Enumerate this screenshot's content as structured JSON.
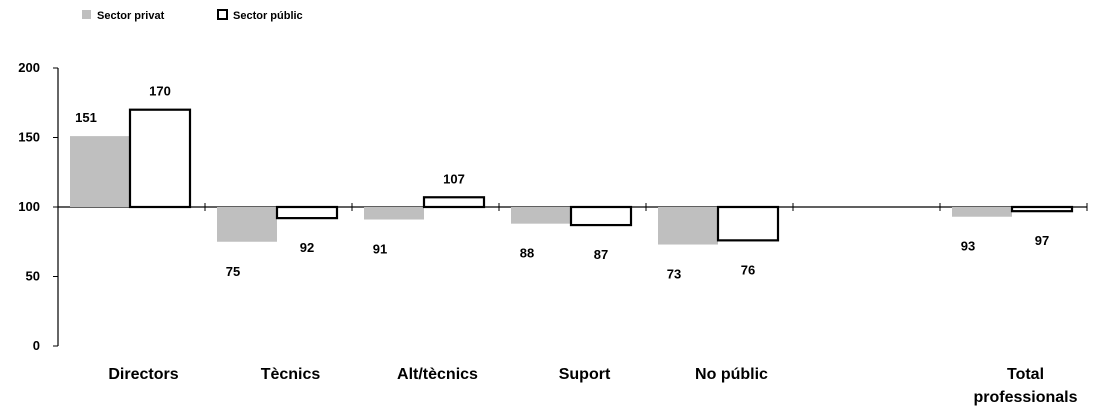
{
  "chart_data": {
    "type": "bar",
    "categories": [
      "Directors",
      "Tècnics",
      "Alt/tècnics",
      "Suport",
      "No públic",
      "",
      "Total professionals"
    ],
    "series": [
      {
        "name": "Sector privat",
        "values": [
          151,
          75,
          91,
          88,
          73,
          null,
          93
        ],
        "color": "#bfbfbf"
      },
      {
        "name": "Sector públic",
        "values": [
          170,
          92,
          107,
          87,
          76,
          null,
          97
        ],
        "color": "#ffffff",
        "stroke": "#000000"
      }
    ],
    "baseline": 100,
    "ylim": [
      0,
      200
    ],
    "yticks": [
      0,
      50,
      100,
      150,
      200
    ],
    "title": "",
    "xlabel": "",
    "ylabel": "",
    "legend": "top-left",
    "grid": false
  }
}
